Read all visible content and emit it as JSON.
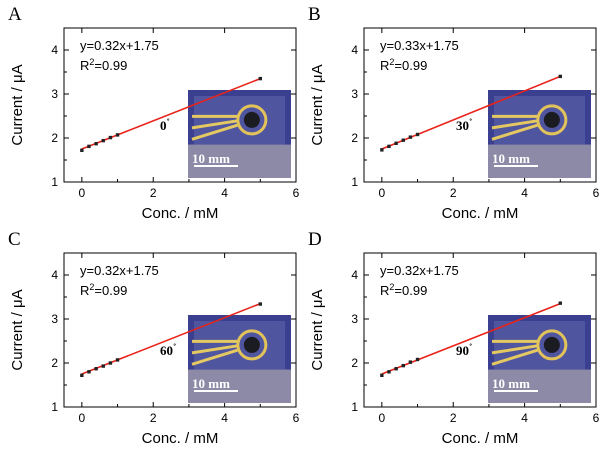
{
  "chart_data": [
    {
      "type": "scatter",
      "panel": "A",
      "xlabel": "Conc. / mM",
      "ylabel": "Current / μA",
      "xlim": [
        -0.5,
        6
      ],
      "ylim": [
        1,
        4.5
      ],
      "xticks": [
        "0",
        "2",
        "4",
        "6"
      ],
      "yticks": [
        "1",
        "2",
        "3",
        "4"
      ],
      "equation": "y=0.32x+1.75",
      "r2_prefix": "R",
      "r2_sup": "2",
      "r2_value": "=0.99",
      "angle": "0",
      "angle_unit": "˚",
      "scale_bar": "10 mm",
      "fit": {
        "slope": 0.32,
        "intercept": 1.75
      },
      "points": [
        {
          "x": 0,
          "y": 1.72
        },
        {
          "x": 0.2,
          "y": 1.81
        },
        {
          "x": 0.4,
          "y": 1.87
        },
        {
          "x": 0.6,
          "y": 1.94
        },
        {
          "x": 0.8,
          "y": 2.01
        },
        {
          "x": 1.0,
          "y": 2.07
        },
        {
          "x": 5.0,
          "y": 3.35
        }
      ],
      "line_color": "#e8231a"
    },
    {
      "type": "scatter",
      "panel": "B",
      "xlabel": "Conc. / mM",
      "ylabel": "Current / μA",
      "xlim": [
        -0.5,
        6
      ],
      "ylim": [
        1,
        4.5
      ],
      "xticks": [
        "0",
        "2",
        "4",
        "6"
      ],
      "yticks": [
        "1",
        "2",
        "3",
        "4"
      ],
      "equation": "y=0.33x+1.75",
      "r2_prefix": "R",
      "r2_sup": "2",
      "r2_value": "=0.99",
      "angle": "30",
      "angle_unit": "˚",
      "scale_bar": "10 mm",
      "fit": {
        "slope": 0.33,
        "intercept": 1.75
      },
      "points": [
        {
          "x": 0,
          "y": 1.73
        },
        {
          "x": 0.2,
          "y": 1.81
        },
        {
          "x": 0.4,
          "y": 1.88
        },
        {
          "x": 0.6,
          "y": 1.95
        },
        {
          "x": 0.8,
          "y": 2.02
        },
        {
          "x": 1.0,
          "y": 2.08
        },
        {
          "x": 5.0,
          "y": 3.4
        }
      ],
      "line_color": "#e8231a"
    },
    {
      "type": "scatter",
      "panel": "C",
      "xlabel": "Conc. / mM",
      "ylabel": "Current / μA",
      "xlim": [
        -0.5,
        6
      ],
      "ylim": [
        1,
        4.5
      ],
      "xticks": [
        "0",
        "2",
        "4",
        "6"
      ],
      "yticks": [
        "1",
        "2",
        "3",
        "4"
      ],
      "equation": "y=0.32x+1.75",
      "r2_prefix": "R",
      "r2_sup": "2",
      "r2_value": "=0.99",
      "angle": "60",
      "angle_unit": "˚",
      "scale_bar": "10 mm",
      "fit": {
        "slope": 0.32,
        "intercept": 1.75
      },
      "points": [
        {
          "x": 0,
          "y": 1.72
        },
        {
          "x": 0.2,
          "y": 1.8
        },
        {
          "x": 0.4,
          "y": 1.87
        },
        {
          "x": 0.6,
          "y": 1.93
        },
        {
          "x": 0.8,
          "y": 2.0
        },
        {
          "x": 1.0,
          "y": 2.07
        },
        {
          "x": 5.0,
          "y": 3.34
        }
      ],
      "line_color": "#e8231a"
    },
    {
      "type": "scatter",
      "panel": "D",
      "xlabel": "Conc. / mM",
      "ylabel": "Current / μA",
      "xlim": [
        -0.5,
        6
      ],
      "ylim": [
        1,
        4.5
      ],
      "xticks": [
        "0",
        "2",
        "4",
        "6"
      ],
      "yticks": [
        "1",
        "2",
        "3",
        "4"
      ],
      "equation": "y=0.32x+1.75",
      "r2_prefix": "R",
      "r2_sup": "2",
      "r2_value": "=0.99",
      "angle": "90",
      "angle_unit": "˚",
      "scale_bar": "10 mm",
      "fit": {
        "slope": 0.32,
        "intercept": 1.75
      },
      "points": [
        {
          "x": 0,
          "y": 1.72
        },
        {
          "x": 0.2,
          "y": 1.8
        },
        {
          "x": 0.4,
          "y": 1.87
        },
        {
          "x": 0.6,
          "y": 1.94
        },
        {
          "x": 0.8,
          "y": 2.02
        },
        {
          "x": 1.0,
          "y": 2.08
        },
        {
          "x": 5.0,
          "y": 3.36
        }
      ],
      "line_color": "#e8231a"
    }
  ]
}
